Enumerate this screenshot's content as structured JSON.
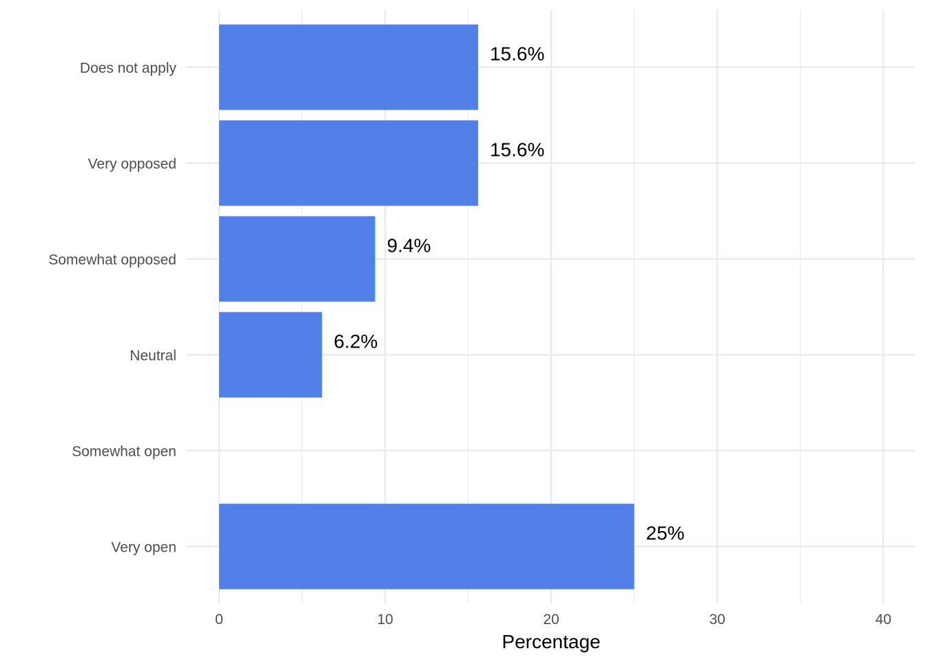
{
  "chart_data": {
    "type": "bar",
    "orientation": "horizontal",
    "categories": [
      "Does not apply",
      "Very opposed",
      "Somewhat opposed",
      "Neutral",
      "Somewhat open",
      "Very open"
    ],
    "values": [
      15.6,
      15.6,
      9.4,
      6.2,
      0,
      25
    ],
    "data_labels": [
      "15.6%",
      "15.6%",
      "9.4%",
      "6.2%",
      null,
      "25%"
    ],
    "xlabel": "Percentage",
    "ylabel": "",
    "xlim": [
      0,
      40
    ],
    "x_ticks": [
      0,
      10,
      20,
      30,
      40
    ],
    "x_tick_labels": [
      "0",
      "10",
      "20",
      "30",
      "40"
    ],
    "grid": true,
    "colors": {
      "bar": "#5181E8",
      "grid": "#EBEBEB"
    }
  }
}
